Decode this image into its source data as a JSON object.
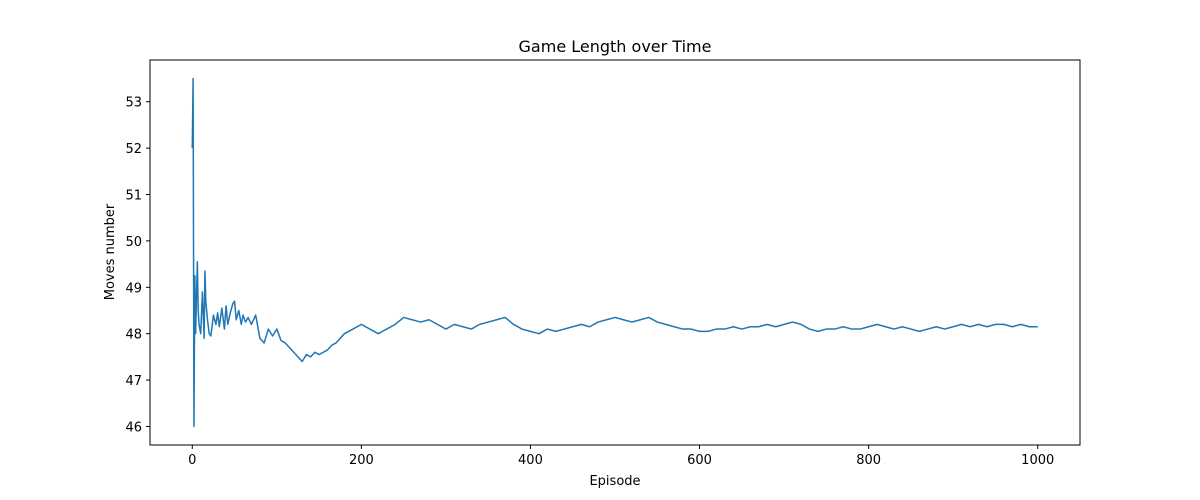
{
  "chart_data": {
    "type": "line",
    "title": "Game Length over Time",
    "xlabel": "Episode",
    "ylabel": "Moves number",
    "xlim": [
      -50,
      1050
    ],
    "ylim": [
      45.6,
      53.9
    ],
    "xticks": [
      0,
      200,
      400,
      600,
      800,
      1000
    ],
    "yticks": [
      46,
      47,
      48,
      49,
      50,
      51,
      52,
      53
    ],
    "grid": false,
    "legend": "none",
    "color": "#1f77b4",
    "series": [
      {
        "x": [
          0,
          1,
          2,
          3,
          4,
          5,
          6,
          7,
          8,
          10,
          12,
          14,
          15,
          16,
          18,
          20,
          22,
          25,
          28,
          30,
          32,
          35,
          38,
          40,
          42,
          45,
          48,
          50,
          52,
          55,
          58,
          60,
          63,
          66,
          70,
          75,
          80,
          85,
          90,
          95,
          100,
          105,
          110,
          115,
          120,
          125,
          130,
          135,
          140,
          145,
          150,
          155,
          160,
          165,
          170,
          175,
          180,
          190,
          200,
          210,
          220,
          230,
          240,
          250,
          260,
          270,
          280,
          290,
          300,
          310,
          320,
          330,
          340,
          350,
          360,
          370,
          380,
          390,
          400,
          410,
          420,
          430,
          440,
          450,
          460,
          470,
          480,
          490,
          500,
          510,
          520,
          530,
          540,
          550,
          560,
          570,
          580,
          590,
          600,
          610,
          620,
          630,
          640,
          650,
          660,
          670,
          680,
          690,
          700,
          710,
          720,
          730,
          740,
          750,
          760,
          770,
          780,
          790,
          800,
          810,
          820,
          830,
          840,
          850,
          860,
          870,
          880,
          890,
          900,
          910,
          920,
          930,
          940,
          950,
          960,
          970,
          980,
          990,
          1000
        ],
        "y": [
          52.0,
          53.5,
          46.0,
          49.25,
          48.0,
          48.8,
          49.55,
          48.5,
          48.2,
          48.0,
          48.9,
          47.9,
          49.35,
          48.7,
          48.3,
          48.0,
          47.95,
          48.4,
          48.2,
          48.45,
          48.15,
          48.55,
          48.1,
          48.6,
          48.2,
          48.45,
          48.65,
          48.7,
          48.3,
          48.5,
          48.2,
          48.4,
          48.25,
          48.35,
          48.2,
          48.4,
          47.9,
          47.8,
          48.1,
          47.95,
          48.1,
          47.85,
          47.8,
          47.7,
          47.6,
          47.5,
          47.4,
          47.55,
          47.5,
          47.6,
          47.55,
          47.6,
          47.65,
          47.75,
          47.8,
          47.9,
          48.0,
          48.1,
          48.2,
          48.1,
          48.0,
          48.1,
          48.2,
          48.35,
          48.3,
          48.25,
          48.3,
          48.2,
          48.1,
          48.2,
          48.15,
          48.1,
          48.2,
          48.25,
          48.3,
          48.35,
          48.2,
          48.1,
          48.05,
          48.0,
          48.1,
          48.05,
          48.1,
          48.15,
          48.2,
          48.15,
          48.25,
          48.3,
          48.35,
          48.3,
          48.25,
          48.3,
          48.35,
          48.25,
          48.2,
          48.15,
          48.1,
          48.1,
          48.05,
          48.05,
          48.1,
          48.1,
          48.15,
          48.1,
          48.15,
          48.15,
          48.2,
          48.15,
          48.2,
          48.25,
          48.2,
          48.1,
          48.05,
          48.1,
          48.1,
          48.15,
          48.1,
          48.1,
          48.15,
          48.2,
          48.15,
          48.1,
          48.15,
          48.1,
          48.05,
          48.1,
          48.15,
          48.1,
          48.15,
          48.2,
          48.15,
          48.2,
          48.15,
          48.2,
          48.2,
          48.15,
          48.2,
          48.15,
          48.15
        ]
      }
    ]
  }
}
